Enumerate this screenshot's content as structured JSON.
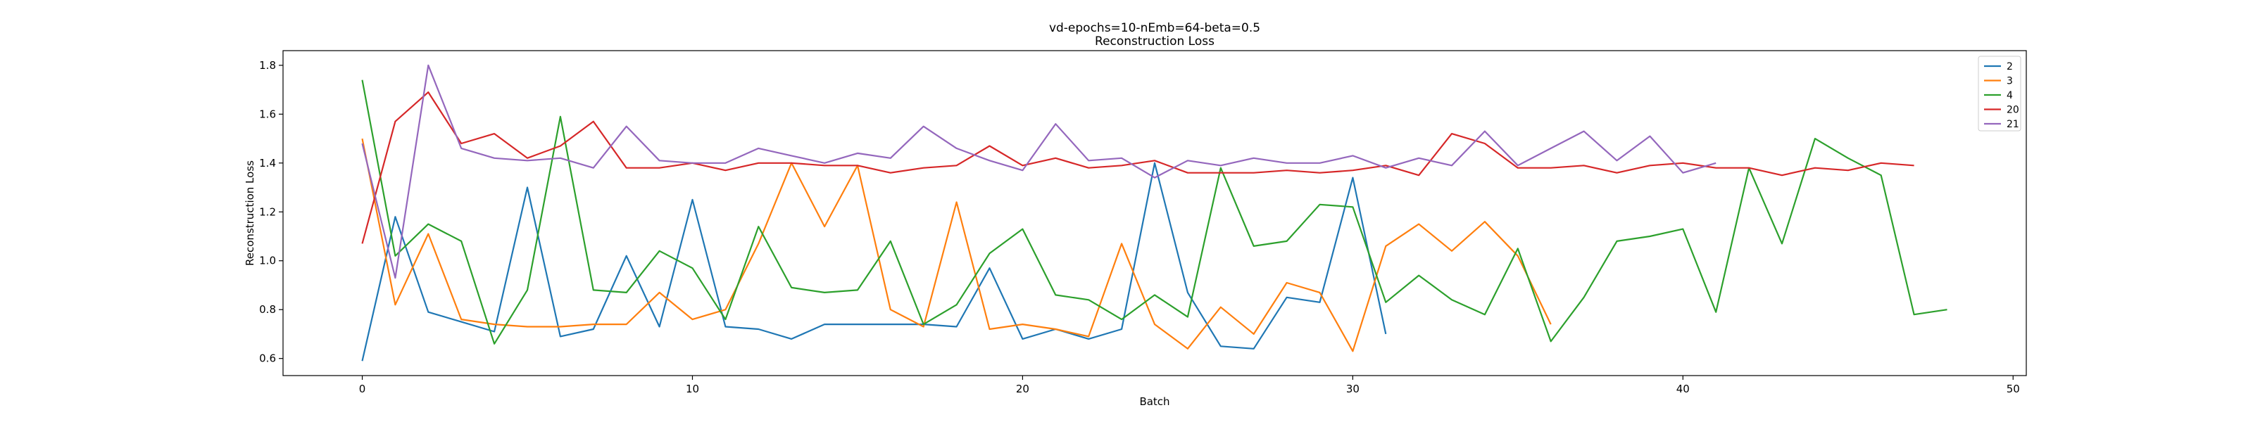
{
  "chart_data": {
    "type": "line",
    "title": "vd-epochs=10-nEmb=64-beta=0.5",
    "subtitle": "Reconstruction Loss",
    "xlabel": "Batch",
    "ylabel": "Reconstruction Loss",
    "xlim": [
      -2.4,
      50.4
    ],
    "ylim": [
      0.53,
      1.86
    ],
    "xticks": [
      0,
      10,
      20,
      30,
      40,
      50
    ],
    "yticks": [
      0.6,
      0.8,
      1.0,
      1.2,
      1.4,
      1.6,
      1.8
    ],
    "xtick_labels": [
      "0",
      "10",
      "20",
      "30",
      "40",
      "50"
    ],
    "ytick_labels": [
      "0.6",
      "0.8",
      "1.0",
      "1.2",
      "1.4",
      "1.6",
      "1.8"
    ],
    "grid": false,
    "legend_position": "upper right",
    "series": [
      {
        "name": "2",
        "color": "#1f77b4",
        "values": [
          0.59,
          1.18,
          0.79,
          0.75,
          0.71,
          1.3,
          0.69,
          0.72,
          1.02,
          0.73,
          1.25,
          0.73,
          0.72,
          0.68,
          0.74,
          0.74,
          0.74,
          0.74,
          0.73,
          0.97,
          0.68,
          0.72,
          0.68,
          0.72,
          1.4,
          0.87,
          0.65,
          0.64,
          0.85,
          0.83,
          1.34,
          0.7
        ]
      },
      {
        "name": "3",
        "color": "#ff7f0e",
        "values": [
          1.5,
          0.82,
          1.11,
          0.76,
          0.74,
          0.73,
          0.73,
          0.74,
          0.74,
          0.87,
          0.76,
          0.8,
          1.07,
          1.4,
          1.14,
          1.39,
          0.8,
          0.73,
          1.24,
          0.72,
          0.74,
          0.72,
          0.69,
          1.07,
          0.74,
          0.64,
          0.81,
          0.7,
          0.91,
          0.87,
          0.63,
          1.06,
          1.15,
          1.04,
          1.16,
          1.02,
          0.74
        ]
      },
      {
        "name": "4",
        "color": "#2ca02c",
        "values": [
          1.74,
          1.02,
          1.15,
          1.08,
          0.66,
          0.88,
          1.59,
          0.88,
          0.87,
          1.04,
          0.97,
          0.76,
          1.14,
          0.89,
          0.87,
          0.88,
          1.08,
          0.74,
          0.82,
          1.03,
          1.13,
          0.86,
          0.84,
          0.76,
          0.86,
          0.77,
          1.38,
          1.06,
          1.08,
          1.23,
          1.22,
          0.83,
          0.94,
          0.84,
          0.78,
          1.05,
          0.67,
          0.85,
          1.08,
          1.1,
          1.13,
          0.79,
          1.38,
          1.07,
          1.5,
          1.42,
          1.35,
          0.78,
          0.8
        ]
      },
      {
        "name": "20",
        "color": "#d62728",
        "values": [
          1.07,
          1.57,
          1.69,
          1.48,
          1.52,
          1.42,
          1.47,
          1.57,
          1.38,
          1.38,
          1.4,
          1.37,
          1.4,
          1.4,
          1.39,
          1.39,
          1.36,
          1.38,
          1.39,
          1.47,
          1.39,
          1.42,
          1.38,
          1.39,
          1.41,
          1.36,
          1.36,
          1.36,
          1.37,
          1.36,
          1.37,
          1.39,
          1.35,
          1.52,
          1.48,
          1.38,
          1.38,
          1.39,
          1.36,
          1.39,
          1.4,
          1.38,
          1.38,
          1.35,
          1.38,
          1.37,
          1.4,
          1.39
        ]
      },
      {
        "name": "21",
        "color": "#9467bd",
        "values": [
          1.48,
          0.93,
          1.8,
          1.46,
          1.42,
          1.41,
          1.42,
          1.38,
          1.55,
          1.41,
          1.4,
          1.4,
          1.46,
          1.43,
          1.4,
          1.44,
          1.42,
          1.55,
          1.46,
          1.41,
          1.37,
          1.56,
          1.41,
          1.42,
          1.34,
          1.41,
          1.39,
          1.42,
          1.4,
          1.4,
          1.43,
          1.38,
          1.42,
          1.39,
          1.53,
          1.39,
          1.46,
          1.53,
          1.41,
          1.51,
          1.36,
          1.4
        ]
      }
    ]
  }
}
